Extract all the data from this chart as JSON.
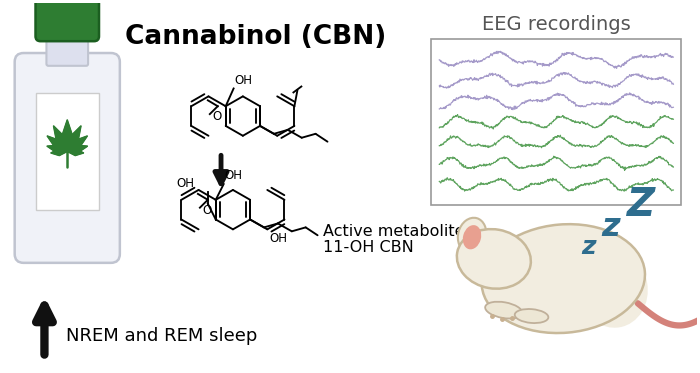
{
  "title": "Cannabinol (CBN)",
  "eeg_title": "EEG recordings",
  "metabolite_text1": "Active metabolite",
  "metabolite_text2": "11-OH CBN",
  "sleep_text": "NREM and REM sleep",
  "background_color": "#ffffff",
  "title_fontsize": 19,
  "eeg_title_fontsize": 14,
  "body_fontsize": 12,
  "eeg_purple_color": "#9b8fc4",
  "eeg_green_color": "#4d9a4d",
  "arrow_color": "#111111",
  "zzz_color": "#2e6d8e",
  "bottle_body_color": "#f0f0f0",
  "bottle_body_edge": "#cccccc",
  "bottle_cap_color": "#2e7d32",
  "bottle_cap_edge": "#1b5e20",
  "leaf_color": "#2e7d32",
  "rat_body_color": "#f0ece0",
  "rat_body_edge": "#c8bda8",
  "rat_ear_color": "#e8b4a0",
  "rat_tail_color": "#d4827a",
  "fig_width": 7.0,
  "fig_height": 3.73,
  "dpi": 100
}
